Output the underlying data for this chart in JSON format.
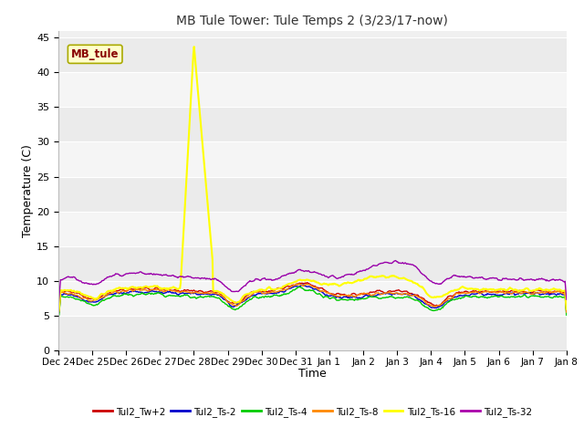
{
  "title": "MB Tule Tower: Tule Temps 2 (3/23/17-now)",
  "xlabel": "Time",
  "ylabel": "Temperature (C)",
  "ylim": [
    0,
    46
  ],
  "yticks": [
    0,
    5,
    10,
    15,
    20,
    25,
    30,
    35,
    40,
    45
  ],
  "x_labels": [
    "Dec 24",
    "Dec 25",
    "Dec 26",
    "Dec 27",
    "Dec 28",
    "Dec 29",
    "Dec 30",
    "Dec 31",
    "Jan 1",
    "Jan 2",
    "Jan 3",
    "Jan 4",
    "Jan 5",
    "Jan 6",
    "Jan 7",
    "Jan 8"
  ],
  "fig_bg": "#ffffff",
  "plot_bg_light": "#f0f0f0",
  "plot_bg_dark": "#e0e0e0",
  "grid_color": "#ffffff",
  "legend_colors": [
    "#cc0000",
    "#0000cc",
    "#00cc00",
    "#ff8800",
    "#ffff00",
    "#aa00aa"
  ],
  "legend_labels": [
    "Tul2_Tw+2",
    "Tul2_Ts-2",
    "Tul2_Ts-4",
    "Tul2_Ts-8",
    "Tul2_Ts-16",
    "Tul2_Ts-32"
  ],
  "line_colors": [
    "#cc0000",
    "#0000cc",
    "#00cc00",
    "#ff8800",
    "#ffff00",
    "#9900aa"
  ],
  "annotation_text": "MB_tule",
  "annotation_color": "#880000",
  "annotation_bg": "#ffffcc",
  "annotation_border": "#aaaa00"
}
